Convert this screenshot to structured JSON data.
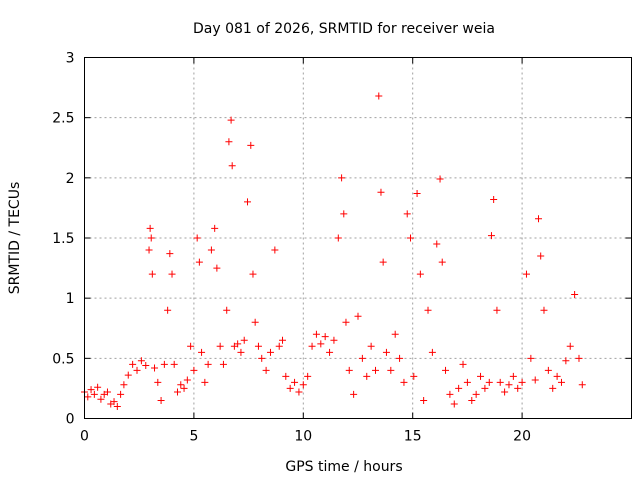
{
  "chart_data": {
    "type": "scatter",
    "title": "Day 081 of 2026, SRMTID for receiver weia",
    "xlabel": "GPS time / hours",
    "ylabel": "SRMTID / TECUs",
    "xlim": [
      0,
      25
    ],
    "ylim": [
      0,
      3
    ],
    "xticks": [
      0,
      5,
      10,
      15,
      20
    ],
    "yticks": [
      0,
      0.5,
      1,
      1.5,
      2,
      2.5,
      3
    ],
    "xtick_labels": [
      "0",
      "5",
      "10",
      "15",
      "20"
    ],
    "ytick_labels": [
      "0",
      "0.5",
      "1",
      "1.5",
      "2",
      "2.5",
      "3"
    ],
    "grid": true,
    "marker": "+",
    "color": "#ff0000",
    "series": [
      {
        "name": "SRMTID",
        "x": [
          0.0,
          0.15,
          0.3,
          0.45,
          0.6,
          0.75,
          0.9,
          1.05,
          1.2,
          1.35,
          1.5,
          1.65,
          1.8,
          2.0,
          2.2,
          2.4,
          2.6,
          2.8,
          2.95,
          3.0,
          3.05,
          3.1,
          3.2,
          3.35,
          3.5,
          3.65,
          3.8,
          3.9,
          4.0,
          4.1,
          4.25,
          4.4,
          4.55,
          4.7,
          4.85,
          5.0,
          5.15,
          5.25,
          5.35,
          5.5,
          5.65,
          5.8,
          5.95,
          6.05,
          6.2,
          6.35,
          6.5,
          6.6,
          6.7,
          6.75,
          6.85,
          7.0,
          7.15,
          7.3,
          7.45,
          7.6,
          7.7,
          7.8,
          7.95,
          8.1,
          8.3,
          8.5,
          8.7,
          8.9,
          9.05,
          9.2,
          9.4,
          9.6,
          9.8,
          10.0,
          10.2,
          10.4,
          10.6,
          10.8,
          11.0,
          11.2,
          11.4,
          11.6,
          11.75,
          11.85,
          11.95,
          12.1,
          12.3,
          12.5,
          12.7,
          12.9,
          13.1,
          13.3,
          13.45,
          13.55,
          13.65,
          13.8,
          14.0,
          14.2,
          14.4,
          14.6,
          14.75,
          14.9,
          15.05,
          15.2,
          15.35,
          15.5,
          15.7,
          15.9,
          16.1,
          16.25,
          16.35,
          16.5,
          16.7,
          16.9,
          17.1,
          17.3,
          17.5,
          17.7,
          17.9,
          18.1,
          18.3,
          18.5,
          18.6,
          18.7,
          18.85,
          19.0,
          19.2,
          19.4,
          19.6,
          19.8,
          20.0,
          20.2,
          20.4,
          20.6,
          20.75,
          20.85,
          21.0,
          21.2,
          21.4,
          21.6,
          21.8,
          22.0,
          22.2,
          22.4,
          22.6,
          22.75
        ],
        "y": [
          0.22,
          0.18,
          0.24,
          0.2,
          0.26,
          0.16,
          0.2,
          0.22,
          0.12,
          0.14,
          0.1,
          0.2,
          0.28,
          0.36,
          0.45,
          0.4,
          0.48,
          0.44,
          1.4,
          1.58,
          1.5,
          1.2,
          0.42,
          0.3,
          0.15,
          0.45,
          0.9,
          1.37,
          1.2,
          0.45,
          0.22,
          0.28,
          0.25,
          0.32,
          0.6,
          0.4,
          1.5,
          1.3,
          0.55,
          0.3,
          0.45,
          1.4,
          1.58,
          1.25,
          0.6,
          0.45,
          0.9,
          2.3,
          2.48,
          2.1,
          0.6,
          0.62,
          0.55,
          0.65,
          1.8,
          2.27,
          1.2,
          0.8,
          0.6,
          0.5,
          0.4,
          0.55,
          1.4,
          0.6,
          0.65,
          0.35,
          0.25,
          0.3,
          0.22,
          0.28,
          0.35,
          0.6,
          0.7,
          0.62,
          0.68,
          0.55,
          0.65,
          1.5,
          2.0,
          1.7,
          0.8,
          0.4,
          0.2,
          0.85,
          0.5,
          0.35,
          0.6,
          0.4,
          2.68,
          1.88,
          1.3,
          0.55,
          0.4,
          0.7,
          0.5,
          0.3,
          1.7,
          1.5,
          0.35,
          1.87,
          1.2,
          0.15,
          0.9,
          0.55,
          1.45,
          1.99,
          1.3,
          0.4,
          0.2,
          0.12,
          0.25,
          0.45,
          0.3,
          0.15,
          0.2,
          0.35,
          0.25,
          0.3,
          1.52,
          1.82,
          0.9,
          0.3,
          0.22,
          0.28,
          0.35,
          0.25,
          0.3,
          1.2,
          0.5,
          0.32,
          1.66,
          1.35,
          0.9,
          0.4,
          0.25,
          0.35,
          0.3,
          0.48,
          0.6,
          1.03,
          0.5,
          0.28
        ]
      }
    ]
  }
}
